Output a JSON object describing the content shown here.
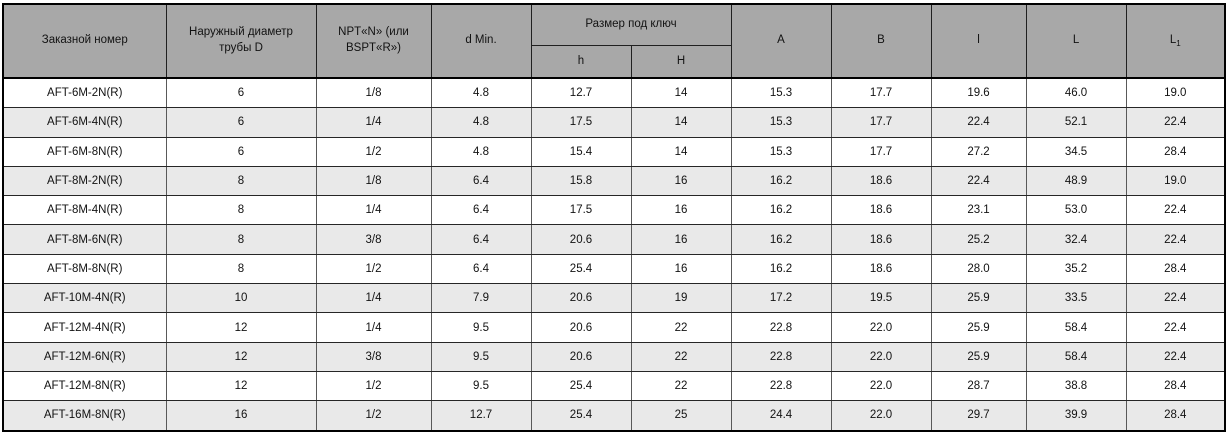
{
  "table": {
    "header": {
      "order_number": "Заказной номер",
      "outer_diameter": "Наружный диаметр трубы D",
      "npt": "NPT«N» (или BSPT«R»)",
      "d_min": "d Min.",
      "wrench_size": "Размер под ключ",
      "h_lower": "h",
      "h_upper": "H",
      "a": "A",
      "b": "B",
      "l_small": "l",
      "l_big": "L",
      "l1_base": "L",
      "l1_sub": "1"
    },
    "rows": [
      [
        "AFT-6M-2N(R)",
        "6",
        "1/8",
        "4.8",
        "12.7",
        "14",
        "15.3",
        "17.7",
        "19.6",
        "46.0",
        "19.0"
      ],
      [
        "AFT-6M-4N(R)",
        "6",
        "1/4",
        "4.8",
        "17.5",
        "14",
        "15.3",
        "17.7",
        "22.4",
        "52.1",
        "22.4"
      ],
      [
        "AFT-6M-8N(R)",
        "6",
        "1/2",
        "4.8",
        "15.4",
        "14",
        "15.3",
        "17.7",
        "27.2",
        "34.5",
        "28.4"
      ],
      [
        "AFT-8M-2N(R)",
        "8",
        "1/8",
        "6.4",
        "15.8",
        "16",
        "16.2",
        "18.6",
        "22.4",
        "48.9",
        "19.0"
      ],
      [
        "AFT-8M-4N(R)",
        "8",
        "1/4",
        "6.4",
        "17.5",
        "16",
        "16.2",
        "18.6",
        "23.1",
        "53.0",
        "22.4"
      ],
      [
        "AFT-8M-6N(R)",
        "8",
        "3/8",
        "6.4",
        "20.6",
        "16",
        "16.2",
        "18.6",
        "25.2",
        "32.4",
        "22.4"
      ],
      [
        "AFT-8M-8N(R)",
        "8",
        "1/2",
        "6.4",
        "25.4",
        "16",
        "16.2",
        "18.6",
        "28.0",
        "35.2",
        "28.4"
      ],
      [
        "AFT-10M-4N(R)",
        "10",
        "1/4",
        "7.9",
        "20.6",
        "19",
        "17.2",
        "19.5",
        "25.9",
        "33.5",
        "22.4"
      ],
      [
        "AFT-12M-4N(R)",
        "12",
        "1/4",
        "9.5",
        "20.6",
        "22",
        "22.8",
        "22.0",
        "25.9",
        "58.4",
        "22.4"
      ],
      [
        "AFT-12M-6N(R)",
        "12",
        "3/8",
        "9.5",
        "20.6",
        "22",
        "22.8",
        "22.0",
        "25.9",
        "58.4",
        "22.4"
      ],
      [
        "AFT-12M-8N(R)",
        "12",
        "1/2",
        "9.5",
        "25.4",
        "22",
        "22.8",
        "22.0",
        "28.7",
        "38.8",
        "28.4"
      ],
      [
        "AFT-16M-8N(R)",
        "16",
        "1/2",
        "12.7",
        "25.4",
        "25",
        "24.4",
        "22.0",
        "29.7",
        "39.9",
        "28.4"
      ]
    ]
  },
  "colors": {
    "header_bg": "#a8a8a8",
    "stripe_bg": "#e9e9e9",
    "row_bg": "#ffffff",
    "border_outer": "#000000",
    "border_inner_vertical": "#595959",
    "border_inner_horizontal": "#262626",
    "text": "#121212"
  }
}
